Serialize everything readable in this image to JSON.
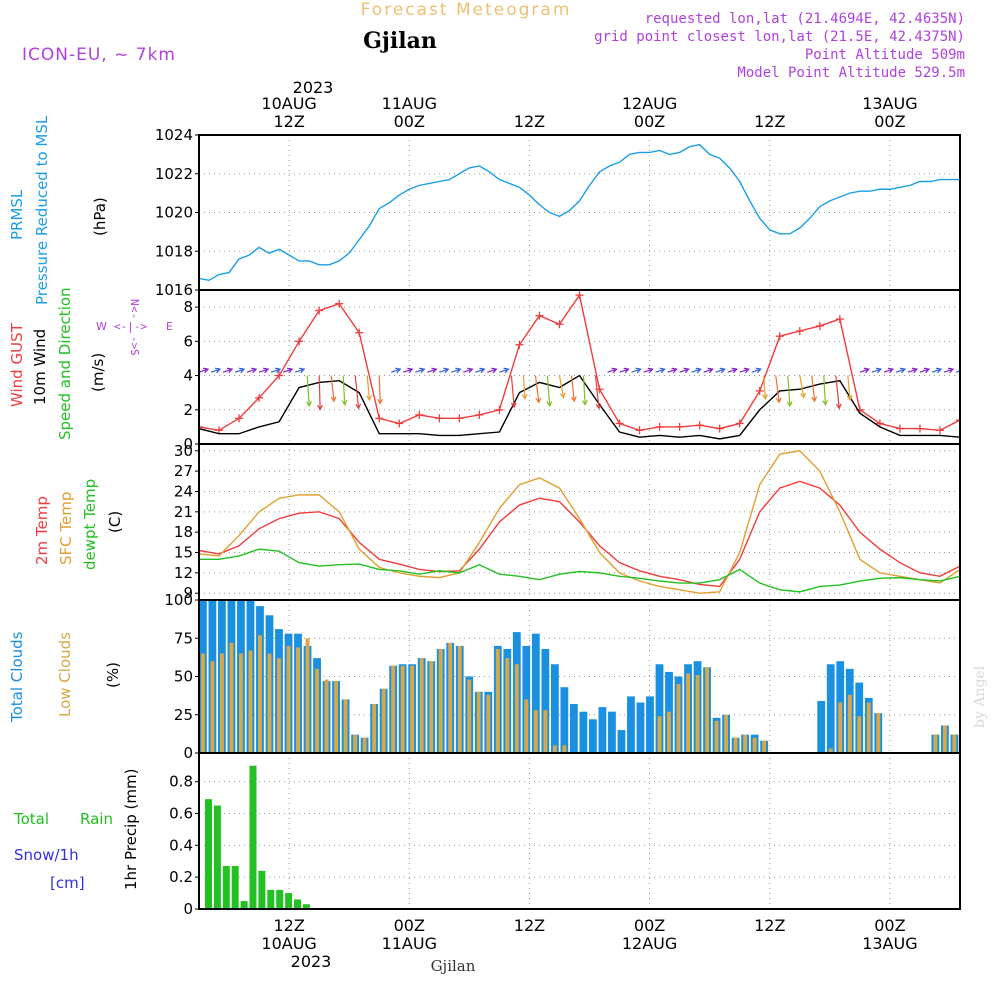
{
  "header": {
    "product": "Forecast Meteogram",
    "location": "Gjilan",
    "model": "ICON-EU, ~ 7km",
    "requested": "requested lon,lat (21.4694E, 42.4635N)",
    "grid_point": "grid point closest lon,lat (21.5E, 42.4375N)",
    "point_altitude": "Point Altitude 509m",
    "model_altitude": "Model Point Altitude 529.5m",
    "footer_location": "Gjilan",
    "credit": "by Angel"
  },
  "time_axis": {
    "top_year": "2023",
    "ticks": [
      {
        "day": "10AUG",
        "hour": "12Z"
      },
      {
        "day": "11AUG",
        "hour": "00Z"
      },
      {
        "day": "",
        "hour": "12Z"
      },
      {
        "day": "12AUG",
        "hour": "00Z"
      },
      {
        "day": "",
        "hour": "12Z"
      },
      {
        "day": "13AUG",
        "hour": "00Z"
      }
    ],
    "bottom_year": "2023"
  },
  "panel_labels": {
    "pressure": {
      "name1": "PRMSL",
      "name2": "Pressure Reduced to MSL",
      "unit": "(hPa)"
    },
    "wind": {
      "name1": "Wind GUST",
      "name2": "10m Wind",
      "name3": "Speed and Direction",
      "unit": "(m/s)",
      "compass": {
        "n": "N",
        "s": "S",
        "e": "E",
        "w": "W"
      }
    },
    "temp": {
      "name1": "2m Temp",
      "name2": "SFC Temp",
      "name3": "dewpt Temp",
      "unit": "(C)"
    },
    "clouds": {
      "name1": "Total Clouds",
      "name2": "Low Clouds",
      "unit": "(%)"
    },
    "precip": {
      "name1": "Total",
      "name1b": "Rain",
      "name2": "Snow/1h",
      "name3": "[cm]",
      "unit": "1hr Precip (mm)"
    }
  },
  "colors": {
    "pressure": "#1a9ee8",
    "gust": "#f03c3c",
    "wind": "#000000",
    "temp2m": "#f03c3c",
    "sfc": "#e0a030",
    "dewpt": "#22c022",
    "total_clouds": "#1a90e0",
    "low_clouds": "#d8a848",
    "rain": "#22c022",
    "snow": "#3030e0",
    "title": "#f0c070",
    "info": "#b040e0"
  },
  "chart_data": [
    {
      "type": "line",
      "name": "pressure",
      "x_unit": "hours since 10AUG 03Z",
      "ylim": [
        1016,
        1024
      ],
      "yticks": [
        1016,
        1018,
        1020,
        1022,
        1024
      ],
      "series": [
        {
          "name": "PRMSL",
          "x": [
            0,
            1,
            2,
            3,
            4,
            5,
            6,
            7,
            8,
            9,
            10,
            11,
            12,
            13,
            14,
            15,
            16,
            17,
            18,
            19,
            20,
            21,
            22,
            23,
            24,
            25,
            26,
            27,
            28,
            29,
            30,
            31,
            32,
            33,
            34,
            35,
            36,
            37,
            38,
            39,
            40,
            41,
            42,
            43,
            44,
            45,
            46,
            47,
            48,
            49,
            50,
            51,
            52,
            53,
            54,
            55,
            56,
            57,
            58,
            59,
            60,
            61,
            62,
            63,
            64,
            65,
            66,
            67,
            68,
            69,
            70,
            71,
            72,
            73,
            74,
            75,
            76
          ],
          "values": [
            1016.6,
            1016.5,
            1016.8,
            1016.9,
            1017.6,
            1017.8,
            1018.2,
            1017.9,
            1018.1,
            1017.8,
            1017.5,
            1017.5,
            1017.3,
            1017.3,
            1017.5,
            1017.9,
            1018.6,
            1019.3,
            1020.2,
            1020.5,
            1020.9,
            1021.2,
            1021.4,
            1021.5,
            1021.6,
            1021.7,
            1022.0,
            1022.3,
            1022.4,
            1022.1,
            1021.7,
            1021.5,
            1021.3,
            1020.9,
            1020.4,
            1020.0,
            1019.8,
            1020.1,
            1020.6,
            1021.4,
            1022.1,
            1022.4,
            1022.6,
            1023.0,
            1023.1,
            1023.1,
            1023.2,
            1023.0,
            1023.1,
            1023.4,
            1023.5,
            1023.0,
            1022.8,
            1022.3,
            1021.6,
            1020.6,
            1019.7,
            1019.1,
            1018.9,
            1018.9,
            1019.2,
            1019.7,
            1020.3,
            1020.6,
            1020.8,
            1021.0,
            1021.1,
            1021.1,
            1021.2,
            1021.2,
            1021.3,
            1021.4,
            1021.6,
            1021.6,
            1021.7,
            1021.7,
            1021.7
          ]
        }
      ]
    },
    {
      "type": "line",
      "name": "wind",
      "ylim": [
        0,
        9
      ],
      "yticks": [
        0,
        2,
        4,
        6,
        8
      ],
      "series": [
        {
          "name": "Wind GUST",
          "x": [
            0,
            2,
            4,
            6,
            8,
            10,
            12,
            14,
            16,
            18,
            20,
            22,
            24,
            26,
            28,
            30,
            32,
            34,
            36,
            38,
            40,
            42,
            44,
            46,
            48,
            50,
            52,
            54,
            56,
            58,
            60,
            62,
            64,
            66,
            68,
            70,
            72,
            74,
            76
          ],
          "values": [
            1.0,
            0.8,
            1.5,
            2.7,
            4.0,
            6.0,
            7.8,
            8.2,
            6.5,
            1.5,
            1.2,
            1.7,
            1.5,
            1.5,
            1.7,
            2.0,
            5.8,
            7.5,
            7.0,
            8.7,
            3.2,
            1.2,
            0.8,
            1.0,
            1.0,
            1.1,
            0.9,
            1.2,
            3.1,
            6.3,
            6.6,
            6.9,
            7.3,
            2.0,
            1.2,
            0.9,
            0.9,
            0.8,
            1.4
          ]
        },
        {
          "name": "10m Wind",
          "x": [
            0,
            2,
            4,
            6,
            8,
            10,
            12,
            14,
            16,
            18,
            20,
            22,
            24,
            26,
            28,
            30,
            32,
            34,
            36,
            38,
            40,
            42,
            44,
            46,
            48,
            50,
            52,
            54,
            56,
            58,
            60,
            62,
            64,
            66,
            68,
            70,
            72,
            74,
            76
          ],
          "values": [
            0.9,
            0.6,
            0.6,
            1.0,
            1.3,
            3.3,
            3.6,
            3.7,
            3.0,
            0.6,
            0.6,
            0.6,
            0.5,
            0.5,
            0.6,
            0.7,
            3.0,
            3.6,
            3.3,
            4.0,
            2.3,
            0.7,
            0.4,
            0.5,
            0.4,
            0.5,
            0.3,
            0.5,
            2.0,
            3.1,
            3.2,
            3.5,
            3.7,
            1.8,
            1.0,
            0.5,
            0.5,
            0.5,
            0.4
          ]
        }
      ]
    },
    {
      "type": "line",
      "name": "temperature",
      "ylim": [
        8,
        31
      ],
      "yticks": [
        9,
        12,
        15,
        18,
        21,
        24,
        27,
        30
      ],
      "series": [
        {
          "name": "2m Temp",
          "x": [
            0,
            2,
            4,
            6,
            8,
            10,
            12,
            14,
            16,
            18,
            20,
            22,
            24,
            26,
            28,
            30,
            32,
            34,
            36,
            38,
            40,
            42,
            44,
            46,
            48,
            50,
            52,
            54,
            56,
            58,
            60,
            62,
            64,
            66,
            68,
            70,
            72,
            74,
            76
          ],
          "values": [
            15.3,
            14.8,
            16.0,
            18.5,
            20.0,
            20.8,
            21.0,
            20.0,
            16.5,
            14.0,
            13.3,
            12.5,
            12.2,
            12.3,
            15.5,
            19.5,
            22.0,
            23.0,
            22.5,
            19.5,
            16.0,
            13.5,
            12.3,
            11.5,
            11.0,
            10.3,
            10.0,
            14.0,
            21.0,
            24.5,
            25.5,
            24.5,
            22.0,
            18.0,
            15.5,
            13.5,
            12.0,
            11.5,
            13.0
          ]
        },
        {
          "name": "SFC Temp",
          "x": [
            0,
            2,
            4,
            6,
            8,
            10,
            12,
            14,
            16,
            18,
            20,
            22,
            24,
            26,
            28,
            30,
            32,
            34,
            36,
            38,
            40,
            42,
            44,
            46,
            48,
            50,
            52,
            54,
            56,
            58,
            60,
            62,
            64,
            66,
            68,
            70,
            72,
            74,
            76
          ],
          "values": [
            14.8,
            14.5,
            17.5,
            21.0,
            23.0,
            23.5,
            23.5,
            21.0,
            15.5,
            12.8,
            12.0,
            11.5,
            11.3,
            12.0,
            16.5,
            21.5,
            25.0,
            26.0,
            24.5,
            20.0,
            15.0,
            12.0,
            10.8,
            10.0,
            9.5,
            9.0,
            9.2,
            15.0,
            25.0,
            29.5,
            30.0,
            27.0,
            21.0,
            14.0,
            12.0,
            11.5,
            11.0,
            10.5,
            12.5
          ]
        },
        {
          "name": "dewpt Temp",
          "x": [
            0,
            2,
            4,
            6,
            8,
            10,
            12,
            14,
            16,
            18,
            20,
            22,
            24,
            26,
            28,
            30,
            32,
            34,
            36,
            38,
            40,
            42,
            44,
            46,
            48,
            50,
            52,
            54,
            56,
            58,
            60,
            62,
            64,
            66,
            68,
            70,
            72,
            74,
            76
          ],
          "values": [
            14.0,
            14.0,
            14.5,
            15.5,
            15.2,
            13.5,
            13.0,
            13.2,
            13.3,
            12.5,
            12.3,
            11.8,
            12.3,
            12.0,
            13.2,
            11.8,
            11.5,
            11.0,
            11.8,
            12.2,
            12.0,
            11.5,
            11.2,
            10.8,
            10.5,
            10.5,
            11.0,
            12.5,
            10.5,
            9.5,
            9.2,
            10.0,
            10.2,
            10.8,
            11.2,
            11.3,
            11.0,
            10.8,
            11.5
          ]
        }
      ]
    },
    {
      "type": "bar",
      "name": "clouds",
      "ylim": [
        0,
        100
      ],
      "yticks": [
        0,
        25,
        50,
        75,
        100
      ],
      "series": [
        {
          "name": "Total Clouds",
          "values": [
            100,
            100,
            100,
            100,
            100,
            100,
            96,
            90,
            81,
            78,
            78,
            70,
            62,
            47,
            47,
            35,
            12,
            10,
            32,
            42,
            57,
            58,
            58,
            62,
            60,
            68,
            72,
            70,
            50,
            40,
            40,
            70,
            68,
            79,
            70,
            78,
            68,
            58,
            43,
            32,
            27,
            22,
            30,
            27,
            15,
            37,
            33,
            37,
            58,
            53,
            50,
            58,
            60,
            56,
            23,
            25,
            10,
            12,
            12,
            8,
            0,
            0,
            0,
            0,
            0,
            34,
            58,
            60,
            55,
            46,
            36,
            26,
            0,
            0,
            0,
            0,
            0,
            12,
            18,
            12
          ]
        },
        {
          "name": "Low Clouds",
          "values": [
            65,
            60,
            65,
            72,
            65,
            67,
            77,
            65,
            62,
            70,
            69,
            75,
            55,
            48,
            47,
            35,
            12,
            10,
            32,
            42,
            57,
            57,
            57,
            62,
            60,
            68,
            72,
            70,
            48,
            40,
            38,
            68,
            62,
            58,
            35,
            28,
            28,
            5,
            5,
            0,
            0,
            0,
            0,
            0,
            0,
            0,
            0,
            0,
            24,
            27,
            45,
            52,
            51,
            56,
            21,
            25,
            10,
            12,
            10,
            8,
            0,
            0,
            0,
            0,
            0,
            0,
            3,
            33,
            38,
            24,
            33,
            26,
            0,
            0,
            0,
            0,
            0,
            12,
            18,
            12
          ]
        }
      ]
    },
    {
      "type": "bar",
      "name": "precipitation",
      "ylim": [
        0,
        0.98
      ],
      "yticks": [
        0,
        0.2,
        0.4,
        0.6,
        0.8
      ],
      "series": [
        {
          "name": "Total Rain",
          "values": [
            0.69,
            0.65,
            0.27,
            0.27,
            0.05,
            0.9,
            0.24,
            0.12,
            0.12,
            0.1,
            0.06,
            0.03,
            0,
            0,
            0,
            0,
            0,
            0,
            0,
            0,
            0,
            0,
            0,
            0,
            0,
            0,
            0,
            0,
            0,
            0,
            0,
            0,
            0,
            0,
            0,
            0,
            0,
            0,
            0,
            0,
            0,
            0,
            0,
            0,
            0,
            0,
            0,
            0,
            0,
            0,
            0,
            0,
            0,
            0,
            0,
            0,
            0,
            0,
            0,
            0,
            0,
            0,
            0,
            0,
            0,
            0,
            0,
            0,
            0,
            0,
            0,
            0,
            0,
            0,
            0,
            0,
            0
          ]
        }
      ]
    }
  ]
}
